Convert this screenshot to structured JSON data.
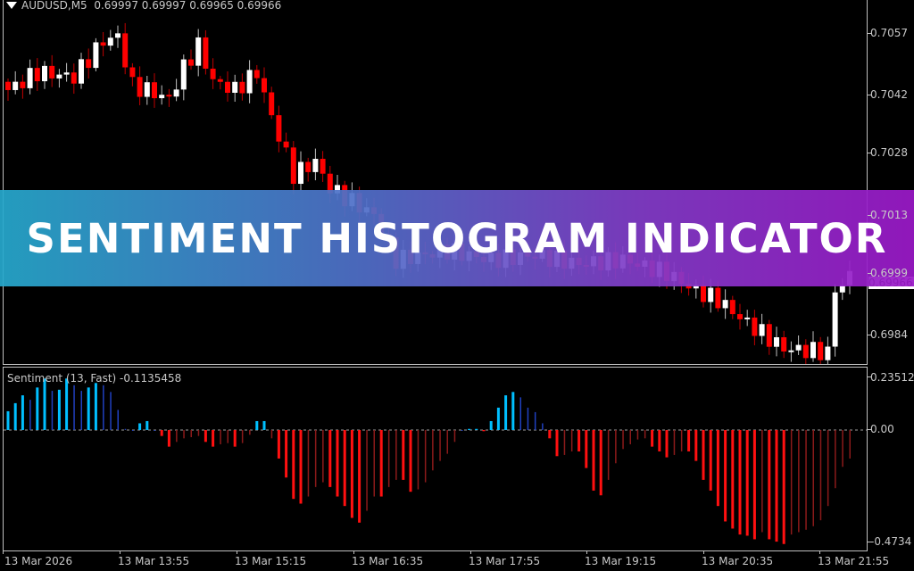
{
  "header": {
    "symbol": "AUDUSD,M5",
    "ohlc": "0.69997 0.69997 0.69965 0.69966"
  },
  "indicator": {
    "label": "Sentiment (13, Fast) -0.1135458"
  },
  "banner": {
    "title": "SENTIMENT HISTOGRAM INDICATOR"
  },
  "price_axis": [
    "0.7057",
    "0.7042",
    "0.7028",
    "0.7013",
    "0.6999",
    "0.6984"
  ],
  "price_axis_values": [
    0.7057,
    0.7042,
    0.7028,
    0.7013,
    0.6999,
    0.6984
  ],
  "current_price": "0.69966",
  "indicator_axis": {
    "max": "0.23512",
    "zero": "0.00",
    "min": "-0.4734"
  },
  "time_axis": [
    "13 Mar 2026",
    "13 Mar 13:55",
    "13 Mar 15:15",
    "13 Mar 16:35",
    "13 Mar 17:55",
    "13 Mar 19:15",
    "13 Mar 20:35",
    "13 Mar 21:55"
  ],
  "colors": {
    "bull_candle": "#ffffff",
    "bear_candle": "#ff0000",
    "hist_pos_strong": "#00bfff",
    "hist_pos_weak": "#2040c0",
    "hist_neg_strong": "#ff1010",
    "hist_neg_weak": "#8b1a1a",
    "banner_left": "#26a8cc",
    "banner_right": "#9b19c8"
  },
  "chart_data": [
    {
      "type": "candlestick",
      "bars": 116,
      "close_path": [
        [
          0,
          0.70434
        ],
        [
          4,
          0.70477
        ],
        [
          9,
          0.70466
        ],
        [
          13,
          0.70553
        ],
        [
          15,
          0.70564
        ],
        [
          17,
          0.70445
        ],
        [
          19,
          0.70434
        ],
        [
          22,
          0.70412
        ],
        [
          24,
          0.70488
        ],
        [
          26,
          0.70542
        ],
        [
          28,
          0.70456
        ],
        [
          31,
          0.70434
        ],
        [
          34,
          0.70477
        ],
        [
          36,
          0.70369
        ],
        [
          39,
          0.70229
        ],
        [
          42,
          0.70261
        ],
        [
          44,
          0.70196
        ],
        [
          50,
          0.70132
        ],
        [
          53,
          0.70023
        ],
        [
          60,
          0.70045
        ],
        [
          66,
          0.70023
        ],
        [
          72,
          0.70034
        ],
        [
          78,
          0.70013
        ],
        [
          84,
          0.70023
        ],
        [
          90,
          0.69991
        ],
        [
          94,
          0.69948
        ],
        [
          97,
          0.69926
        ],
        [
          100,
          0.69883
        ],
        [
          104,
          0.69833
        ],
        [
          106,
          0.69808
        ],
        [
          111,
          0.69801
        ],
        [
          112,
          0.69797
        ],
        [
          113,
          0.69952
        ],
        [
          114,
          0.69963
        ],
        [
          115,
          0.69985
        ]
      ]
    },
    {
      "type": "bar",
      "name": "Sentiment (13, Fast)",
      "ylim": [
        -0.4734,
        0.23512
      ],
      "values": [
        0.084,
        0.12,
        0.155,
        0.135,
        0.19,
        0.23,
        0.175,
        0.18,
        0.23,
        0.2,
        0.175,
        0.19,
        0.21,
        0.2,
        0.17,
        0.09,
        0.005,
        0.0,
        0.03,
        0.04,
        0.0,
        -0.025,
        -0.07,
        -0.05,
        -0.035,
        -0.03,
        -0.025,
        -0.05,
        -0.07,
        -0.06,
        -0.055,
        -0.07,
        -0.055,
        -0.02,
        0.04,
        0.04,
        -0.035,
        -0.12,
        -0.2,
        -0.29,
        -0.31,
        -0.28,
        -0.24,
        -0.22,
        -0.24,
        -0.28,
        -0.32,
        -0.37,
        -0.39,
        -0.34,
        -0.28,
        -0.28,
        -0.24,
        -0.21,
        -0.21,
        -0.26,
        -0.25,
        -0.22,
        -0.17,
        -0.13,
        -0.1,
        -0.05,
        0.0,
        0.005,
        0.005,
        -0.005,
        0.04,
        0.1,
        0.155,
        0.17,
        0.146,
        0.1,
        0.08,
        0.03,
        -0.035,
        -0.11,
        -0.105,
        -0.09,
        -0.09,
        -0.16,
        -0.255,
        -0.275,
        -0.21,
        -0.14,
        -0.08,
        -0.06,
        -0.04,
        -0.035,
        -0.07,
        -0.09,
        -0.115,
        -0.105,
        -0.09,
        -0.09,
        -0.13,
        -0.21,
        -0.255,
        -0.32,
        -0.385,
        -0.415,
        -0.44,
        -0.445,
        -0.46,
        -0.43,
        -0.46,
        -0.47,
        -0.48,
        -0.44,
        -0.43,
        -0.42,
        -0.405,
        -0.38,
        -0.32,
        -0.245,
        -0.155,
        -0.12
      ]
    }
  ]
}
